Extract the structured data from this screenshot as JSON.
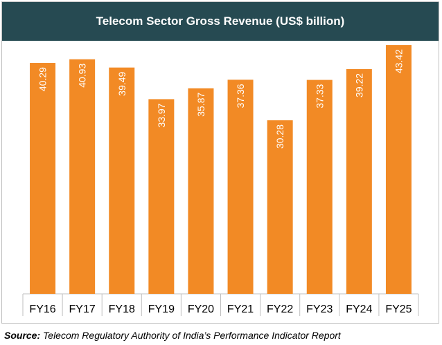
{
  "title": "Telecom Sector Gross Revenue (US$ billion)",
  "source": {
    "label": "Source:",
    "text": " Telecom Regulatory Authority of India’s Performance Indicator Report"
  },
  "colors": {
    "bar": "#f28a25",
    "title_bg": "#264a52",
    "label_text": "#ffffff",
    "axis": "#bfbfbf"
  },
  "chart_data": {
    "type": "bar",
    "title": "Telecom Sector Gross Revenue (US$ billion)",
    "xlabel": "",
    "ylabel": "",
    "categories": [
      "FY16",
      "FY17",
      "FY18",
      "FY19",
      "FY20",
      "FY21",
      "FY22",
      "FY23",
      "FY24",
      "FY25"
    ],
    "values": [
      40.29,
      40.93,
      39.49,
      33.97,
      35.87,
      37.36,
      30.28,
      37.33,
      39.22,
      43.42
    ],
    "data_labels": [
      "40.29",
      "40.93",
      "39.49",
      "33.97",
      "35.87",
      "37.36",
      "30.28",
      "37.33",
      "39.22",
      "43.42"
    ],
    "ylim": [
      0,
      45
    ],
    "grid": false,
    "legend": "none"
  }
}
